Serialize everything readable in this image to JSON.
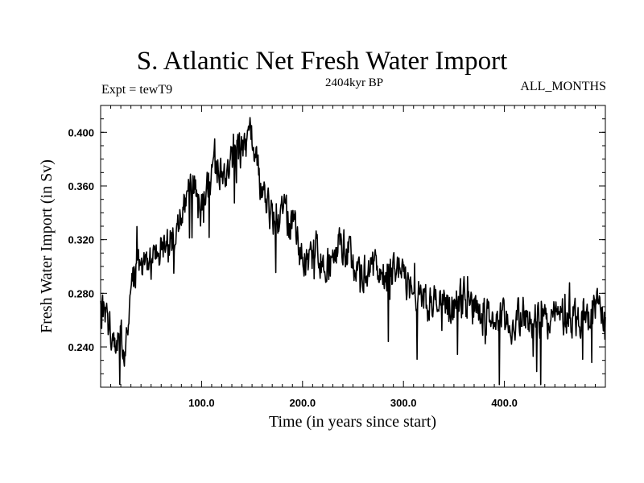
{
  "chart_data": {
    "type": "line",
    "title": "S. Atlantic Net Fresh Water Import",
    "subtitle": "2404kyr BP",
    "left_label": "Expt = tewT9",
    "right_label": "ALL_MONTHS",
    "xlabel": "Time (in years since start)",
    "ylabel": "Fresh Water Import (in Sv)",
    "xlim": [
      0,
      500
    ],
    "ylim": [
      0.21,
      0.42
    ],
    "xticks": [
      100,
      200,
      300,
      400
    ],
    "xtick_labels": [
      "100.0",
      "200.0",
      "300.0",
      "400.0"
    ],
    "yticks": [
      0.24,
      0.28,
      0.32,
      0.36,
      0.4
    ],
    "ytick_labels": [
      "0.240",
      "0.280",
      "0.320",
      "0.360",
      "0.400"
    ],
    "grid": false,
    "series": [
      {
        "name": "fresh water import",
        "color": "#000000",
        "noise_amplitude": 0.015,
        "spike_rate": 0.03,
        "anchors_x": [
          0,
          5,
          10,
          15,
          20,
          25,
          30,
          35,
          40,
          50,
          60,
          70,
          80,
          90,
          100,
          110,
          120,
          130,
          140,
          150,
          155,
          160,
          170,
          180,
          190,
          200,
          210,
          220,
          230,
          240,
          250,
          260,
          270,
          280,
          290,
          300,
          320,
          340,
          360,
          380,
          400,
          420,
          440,
          460,
          480,
          490,
          500
        ],
        "anchors_y": [
          0.265,
          0.27,
          0.255,
          0.25,
          0.245,
          0.24,
          0.275,
          0.3,
          0.305,
          0.3,
          0.31,
          0.32,
          0.335,
          0.36,
          0.35,
          0.37,
          0.375,
          0.38,
          0.388,
          0.395,
          0.385,
          0.355,
          0.335,
          0.34,
          0.33,
          0.305,
          0.31,
          0.305,
          0.305,
          0.32,
          0.305,
          0.295,
          0.298,
          0.3,
          0.295,
          0.29,
          0.275,
          0.27,
          0.275,
          0.265,
          0.258,
          0.26,
          0.262,
          0.262,
          0.262,
          0.27,
          0.26
        ]
      }
    ]
  }
}
